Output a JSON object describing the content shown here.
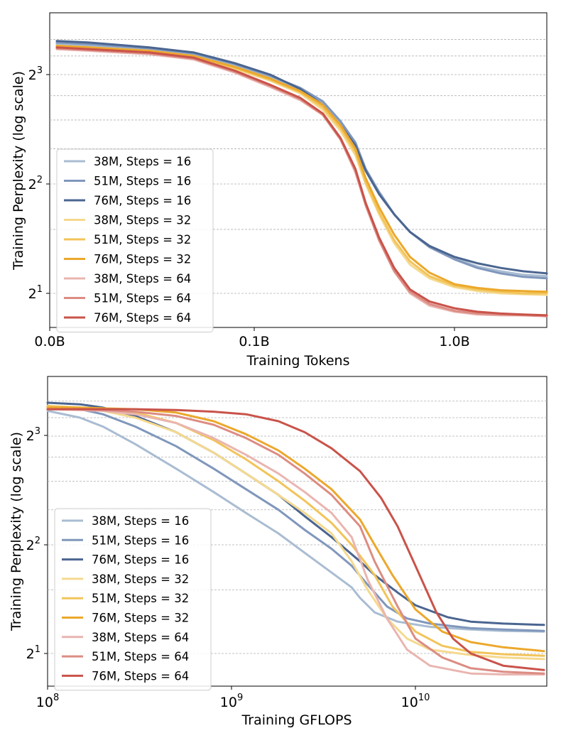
{
  "colors": {
    "38M-16": "#a9bcd2",
    "51M-16": "#8097bc",
    "76M-16": "#4a6590",
    "38M-32": "#f5d98f",
    "51M-32": "#f2c45a",
    "76M-32": "#eca82c",
    "38M-64": "#e9b5b0",
    "51M-64": "#dc8c83",
    "76M-64": "#c9534a",
    "grid": "#b0b0b0"
  },
  "legend_labels": [
    "38M, Steps = 16",
    "51M, Steps = 16",
    "76M, Steps = 16",
    "38M, Steps = 32",
    "51M, Steps = 32",
    "76M, Steps = 32",
    "38M, Steps = 64",
    "51M, Steps = 64",
    "76M, Steps = 64"
  ],
  "chart_data": [
    {
      "type": "line",
      "xlabel": "Training Tokens",
      "ylabel": "Training Perplexity (log scale)",
      "x_scale": "log (axis starts at 0.0B)",
      "y_scale": "log2",
      "xlim_tokens_B": [
        0.0,
        2.9
      ],
      "ylim": [
        1.65,
        10.3
      ],
      "x_ticks": [
        "0.0B",
        "0.1B",
        "1.0B"
      ],
      "y_ticks": [
        "2^1",
        "2^2",
        "2^3"
      ],
      "grid": "horizontal dashed",
      "legend_position": "left-lower",
      "series": [
        {
          "name": "38M, Steps = 16",
          "color_key": "38M-16",
          "x": [
            0.01,
            0.015,
            0.03,
            0.05,
            0.08,
            0.12,
            0.17,
            0.22,
            0.27,
            0.32,
            0.36,
            0.42,
            0.5,
            0.6,
            0.75,
            1.0,
            1.3,
            1.7,
            2.2,
            2.9
          ],
          "y": [
            9.7,
            9.6,
            9.4,
            9.1,
            8.5,
            7.9,
            7.3,
            6.7,
            5.9,
            5.2,
            4.4,
            3.8,
            3.3,
            2.95,
            2.7,
            2.5,
            2.37,
            2.3,
            2.25,
            2.23
          ]
        },
        {
          "name": "51M, Steps = 16",
          "color_key": "51M-16",
          "x": [
            0.01,
            0.015,
            0.03,
            0.05,
            0.08,
            0.12,
            0.17,
            0.22,
            0.27,
            0.32,
            0.36,
            0.42,
            0.5,
            0.6,
            0.75,
            1.0,
            1.3,
            1.7,
            2.2,
            2.9
          ],
          "y": [
            9.8,
            9.7,
            9.45,
            9.15,
            8.55,
            7.95,
            7.35,
            6.75,
            5.95,
            5.2,
            4.4,
            3.8,
            3.3,
            2.95,
            2.68,
            2.48,
            2.35,
            2.27,
            2.22,
            2.2
          ]
        },
        {
          "name": "76M, Steps = 16",
          "color_key": "76M-16",
          "x": [
            0.01,
            0.015,
            0.03,
            0.05,
            0.08,
            0.12,
            0.17,
            0.22,
            0.27,
            0.32,
            0.36,
            0.42,
            0.5,
            0.6,
            0.75,
            1.0,
            1.3,
            1.7,
            2.2,
            2.9
          ],
          "y": [
            9.9,
            9.8,
            9.5,
            9.2,
            8.6,
            8.0,
            7.3,
            6.6,
            5.8,
            5.1,
            4.35,
            3.75,
            3.3,
            2.95,
            2.7,
            2.52,
            2.42,
            2.35,
            2.3,
            2.27
          ]
        },
        {
          "name": "38M, Steps = 32",
          "color_key": "38M-32",
          "x": [
            0.01,
            0.015,
            0.03,
            0.05,
            0.08,
            0.12,
            0.17,
            0.22,
            0.27,
            0.32,
            0.36,
            0.42,
            0.5,
            0.6,
            0.75,
            1.0,
            1.3,
            1.7,
            2.2,
            2.9
          ],
          "y": [
            9.5,
            9.4,
            9.2,
            8.9,
            8.3,
            7.7,
            7.1,
            6.4,
            5.6,
            4.8,
            4.0,
            3.3,
            2.75,
            2.4,
            2.2,
            2.08,
            2.03,
            2.0,
            1.99,
            1.98
          ]
        },
        {
          "name": "51M, Steps = 32",
          "color_key": "51M-32",
          "x": [
            0.01,
            0.015,
            0.03,
            0.05,
            0.08,
            0.12,
            0.17,
            0.22,
            0.27,
            0.32,
            0.36,
            0.42,
            0.5,
            0.6,
            0.75,
            1.0,
            1.3,
            1.7,
            2.2,
            2.9
          ],
          "y": [
            9.6,
            9.5,
            9.3,
            8.95,
            8.35,
            7.75,
            7.15,
            6.5,
            5.7,
            4.9,
            4.05,
            3.35,
            2.8,
            2.45,
            2.23,
            2.1,
            2.05,
            2.02,
            2.0,
            2.0
          ]
        },
        {
          "name": "76M, Steps = 32",
          "color_key": "76M-32",
          "x": [
            0.01,
            0.015,
            0.03,
            0.05,
            0.08,
            0.12,
            0.17,
            0.22,
            0.27,
            0.32,
            0.36,
            0.42,
            0.5,
            0.6,
            0.75,
            1.0,
            1.3,
            1.7,
            2.2,
            2.9
          ],
          "y": [
            9.6,
            9.5,
            9.3,
            9.0,
            8.4,
            7.8,
            7.2,
            6.6,
            5.8,
            5.0,
            4.15,
            3.45,
            2.9,
            2.52,
            2.28,
            2.12,
            2.07,
            2.04,
            2.03,
            2.02
          ]
        },
        {
          "name": "38M, Steps = 64",
          "color_key": "38M-64",
          "x": [
            0.01,
            0.015,
            0.03,
            0.05,
            0.08,
            0.12,
            0.17,
            0.22,
            0.27,
            0.32,
            0.36,
            0.42,
            0.5,
            0.6,
            0.75,
            1.0,
            1.3,
            1.7,
            2.2,
            2.9
          ],
          "y": [
            9.4,
            9.3,
            9.1,
            8.8,
            8.1,
            7.4,
            6.8,
            6.2,
            5.3,
            4.3,
            3.5,
            2.8,
            2.3,
            2.0,
            1.85,
            1.78,
            1.75,
            1.74,
            1.74,
            1.74
          ]
        },
        {
          "name": "51M, Steps = 64",
          "color_key": "51M-64",
          "x": [
            0.01,
            0.015,
            0.03,
            0.05,
            0.08,
            0.12,
            0.17,
            0.22,
            0.27,
            0.32,
            0.36,
            0.42,
            0.5,
            0.6,
            0.75,
            1.0,
            1.3,
            1.7,
            2.2,
            2.9
          ],
          "y": [
            9.45,
            9.35,
            9.15,
            8.85,
            8.15,
            7.45,
            6.85,
            6.2,
            5.3,
            4.35,
            3.5,
            2.8,
            2.3,
            2.02,
            1.87,
            1.79,
            1.76,
            1.75,
            1.74,
            1.73
          ]
        },
        {
          "name": "76M, Steps = 64",
          "color_key": "76M-64",
          "x": [
            0.01,
            0.015,
            0.03,
            0.05,
            0.08,
            0.12,
            0.17,
            0.22,
            0.27,
            0.32,
            0.36,
            0.42,
            0.5,
            0.6,
            0.75,
            1.0,
            1.3,
            1.7,
            2.2,
            2.9
          ],
          "y": [
            9.5,
            9.4,
            9.2,
            8.9,
            8.2,
            7.5,
            6.9,
            6.25,
            5.35,
            4.4,
            3.55,
            2.85,
            2.35,
            2.05,
            1.9,
            1.82,
            1.78,
            1.76,
            1.75,
            1.74
          ]
        }
      ]
    },
    {
      "type": "line",
      "xlabel": "Training GFLOPS",
      "ylabel": "Training Perplexity (log scale)",
      "x_scale": "log10",
      "y_scale": "log2",
      "xlim": [
        100000000.0,
        50000000000.0
      ],
      "ylim": [
        1.65,
        10.3
      ],
      "x_ticks": [
        "10^8",
        "10^9",
        "10^10"
      ],
      "y_ticks": [
        "2^1",
        "2^2",
        "2^3"
      ],
      "grid": "horizontal dashed",
      "legend_position": "left-lower",
      "series": [
        {
          "name": "38M, Steps = 16",
          "color_key": "38M-16",
          "x": [
            100000000.0,
            150000000.0,
            200000000.0,
            300000000.0,
            500000000.0,
            800000000.0,
            1200000000.0,
            1800000000.0,
            2500000000.0,
            3500000000.0,
            4500000000.0,
            5000000000.0,
            6000000000.0,
            8000000000.0,
            12000000000.0,
            20000000000.0,
            30000000000.0,
            50000000000.0
          ],
          "y": [
            9.4,
            9.0,
            8.5,
            7.6,
            6.5,
            5.6,
            4.9,
            4.3,
            3.8,
            3.35,
            3.05,
            2.85,
            2.6,
            2.45,
            2.37,
            2.33,
            2.31,
            2.3
          ]
        },
        {
          "name": "51M, Steps = 16",
          "color_key": "51M-16",
          "x": [
            100000000.0,
            150000000.0,
            200000000.0,
            300000000.0,
            500000000.0,
            800000000.0,
            1200000000.0,
            1800000000.0,
            2500000000.0,
            3500000000.0,
            4500000000.0,
            5500000000.0,
            7000000000.0,
            9000000000.0,
            12000000000.0,
            20000000000.0,
            30000000000.0,
            50000000000.0
          ],
          "y": [
            9.7,
            9.5,
            9.2,
            8.5,
            7.5,
            6.5,
            5.7,
            5.0,
            4.4,
            3.9,
            3.5,
            3.1,
            2.7,
            2.5,
            2.42,
            2.35,
            2.33,
            2.31
          ]
        },
        {
          "name": "76M, Steps = 16",
          "color_key": "76M-16",
          "x": [
            100000000.0,
            150000000.0,
            200000000.0,
            300000000.0,
            500000000.0,
            800000000.0,
            1200000000.0,
            1800000000.0,
            2500000000.0,
            3500000000.0,
            5000000000.0,
            6000000000.0,
            8000000000.0,
            10000000000.0,
            15000000000.0,
            20000000000.0,
            30000000000.0,
            50000000000.0
          ],
          "y": [
            9.9,
            9.8,
            9.6,
            9.1,
            8.2,
            7.2,
            6.3,
            5.5,
            4.8,
            4.2,
            3.6,
            3.3,
            2.95,
            2.72,
            2.52,
            2.45,
            2.42,
            2.4
          ]
        },
        {
          "name": "38M, Steps = 32",
          "color_key": "38M-32",
          "x": [
            100000000.0,
            150000000.0,
            200000000.0,
            300000000.0,
            500000000.0,
            800000000.0,
            1200000000.0,
            1800000000.0,
            2500000000.0,
            3500000000.0,
            4500000000.0,
            5500000000.0,
            7000000000.0,
            9000000000.0,
            12000000000.0,
            20000000000.0,
            30000000000.0,
            50000000000.0
          ],
          "y": [
            9.6,
            9.5,
            9.4,
            9.0,
            8.2,
            7.2,
            6.3,
            5.5,
            4.9,
            4.3,
            3.6,
            3.0,
            2.5,
            2.2,
            2.05,
            1.98,
            1.95,
            1.93
          ]
        },
        {
          "name": "51M, Steps = 32",
          "color_key": "51M-32",
          "x": [
            100000000.0,
            150000000.0,
            200000000.0,
            300000000.0,
            500000000.0,
            800000000.0,
            1200000000.0,
            1800000000.0,
            2500000000.0,
            3500000000.0,
            4500000000.0,
            6000000000.0,
            7500000000.0,
            10000000000.0,
            14000000000.0,
            20000000000.0,
            30000000000.0,
            50000000000.0
          ],
          "y": [
            9.7,
            9.6,
            9.5,
            9.3,
            8.7,
            7.8,
            6.9,
            6.0,
            5.3,
            4.6,
            4.0,
            3.3,
            2.7,
            2.3,
            2.1,
            2.02,
            1.99,
            1.97
          ]
        },
        {
          "name": "76M, Steps = 32",
          "color_key": "76M-32",
          "x": [
            100000000.0,
            150000000.0,
            200000000.0,
            300000000.0,
            500000000.0,
            800000000.0,
            1200000000.0,
            1800000000.0,
            2500000000.0,
            3500000000.0,
            5000000000.0,
            6000000000.0,
            7500000000.0,
            10000000000.0,
            14000000000.0,
            20000000000.0,
            30000000000.0,
            50000000000.0
          ],
          "y": [
            9.6,
            9.6,
            9.55,
            9.5,
            9.3,
            8.8,
            8.1,
            7.3,
            6.5,
            5.7,
            4.7,
            4.0,
            3.3,
            2.65,
            2.3,
            2.15,
            2.08,
            2.03
          ]
        },
        {
          "name": "38M, Steps = 64",
          "color_key": "38M-64",
          "x": [
            100000000.0,
            150000000.0,
            200000000.0,
            300000000.0,
            500000000.0,
            800000000.0,
            1200000000.0,
            1800000000.0,
            2500000000.0,
            3500000000.0,
            4500000000.0,
            5500000000.0,
            7000000000.0,
            9000000000.0,
            12000000000.0,
            20000000000.0,
            30000000000.0,
            50000000000.0
          ],
          "y": [
            9.5,
            9.45,
            9.4,
            9.2,
            8.7,
            7.9,
            7.1,
            6.3,
            5.6,
            4.9,
            4.2,
            3.2,
            2.5,
            2.05,
            1.85,
            1.76,
            1.75,
            1.75
          ]
        },
        {
          "name": "51M, Steps = 64",
          "color_key": "51M-64",
          "x": [
            100000000.0,
            150000000.0,
            200000000.0,
            300000000.0,
            500000000.0,
            800000000.0,
            1200000000.0,
            1800000000.0,
            2500000000.0,
            3500000000.0,
            5000000000.0,
            6000000000.0,
            8000000000.0,
            10000000000.0,
            14000000000.0,
            20000000000.0,
            30000000000.0,
            50000000000.0
          ],
          "y": [
            9.5,
            9.5,
            9.45,
            9.35,
            9.1,
            8.6,
            7.9,
            7.1,
            6.3,
            5.5,
            4.5,
            3.6,
            2.7,
            2.2,
            1.95,
            1.82,
            1.78,
            1.76
          ]
        },
        {
          "name": "76M, Steps = 64",
          "color_key": "76M-64",
          "x": [
            100000000.0,
            150000000.0,
            200000000.0,
            300000000.0,
            500000000.0,
            800000000.0,
            1200000000.0,
            1800000000.0,
            2500000000.0,
            3500000000.0,
            5000000000.0,
            6500000000.0,
            8000000000.0,
            10000000000.0,
            13000000000.0,
            16000000000.0,
            20000000000.0,
            30000000000.0,
            50000000000.0
          ],
          "y": [
            9.5,
            9.5,
            9.5,
            9.5,
            9.45,
            9.35,
            9.2,
            8.8,
            8.2,
            7.4,
            6.4,
            5.4,
            4.5,
            3.5,
            2.6,
            2.2,
            2.0,
            1.85,
            1.8
          ]
        }
      ]
    }
  ]
}
